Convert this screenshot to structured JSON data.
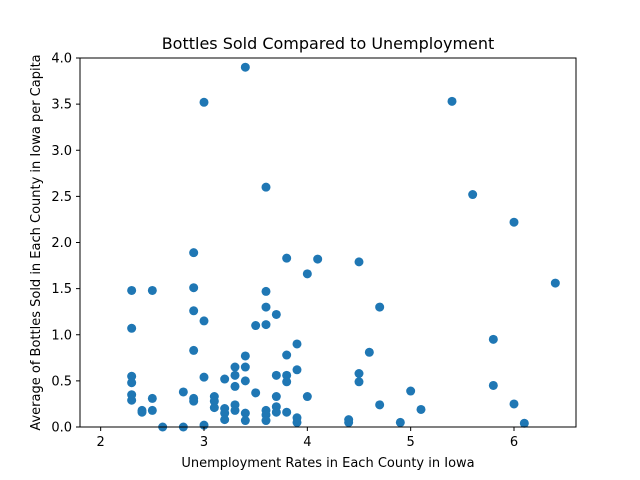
{
  "chart_data": {
    "type": "scatter",
    "title": "Bottles Sold Compared to Unemployment",
    "xlabel": "Unemployment Rates in Each County in Iowa",
    "ylabel": "Average of Bottles Sold in Each County in Iowa per Capita",
    "xlim": [
      1.8,
      6.6
    ],
    "ylim": [
      0.0,
      4.0
    ],
    "x_ticks": [
      2,
      3,
      4,
      5,
      6
    ],
    "x_tick_labels": [
      "2",
      "3",
      "4",
      "5",
      "6"
    ],
    "y_ticks": [
      0.0,
      0.5,
      1.0,
      1.5,
      2.0,
      2.5,
      3.0,
      3.5,
      4.0
    ],
    "y_tick_labels": [
      "0.0",
      "0.5",
      "1.0",
      "1.5",
      "2.0",
      "2.5",
      "3.0",
      "3.5",
      "4.0"
    ],
    "grid": false,
    "marker_color": "#1f77b4",
    "points": [
      [
        2.3,
        1.48
      ],
      [
        2.3,
        1.07
      ],
      [
        2.3,
        0.55
      ],
      [
        2.3,
        0.48
      ],
      [
        2.3,
        0.35
      ],
      [
        2.3,
        0.29
      ],
      [
        2.4,
        0.18
      ],
      [
        2.4,
        0.16
      ],
      [
        2.5,
        1.48
      ],
      [
        2.5,
        0.31
      ],
      [
        2.5,
        0.18
      ],
      [
        2.6,
        0.0
      ],
      [
        2.8,
        0.38
      ],
      [
        2.8,
        0.0
      ],
      [
        2.9,
        1.89
      ],
      [
        2.9,
        1.51
      ],
      [
        2.9,
        1.26
      ],
      [
        2.9,
        0.83
      ],
      [
        2.9,
        0.31
      ],
      [
        2.9,
        0.28
      ],
      [
        3.0,
        3.52
      ],
      [
        3.0,
        1.15
      ],
      [
        3.0,
        0.54
      ],
      [
        3.0,
        0.02
      ],
      [
        3.1,
        0.33
      ],
      [
        3.1,
        0.28
      ],
      [
        3.1,
        0.21
      ],
      [
        3.2,
        0.52
      ],
      [
        3.2,
        0.2
      ],
      [
        3.2,
        0.15
      ],
      [
        3.2,
        0.08
      ],
      [
        3.3,
        0.65
      ],
      [
        3.3,
        0.56
      ],
      [
        3.3,
        0.44
      ],
      [
        3.3,
        0.24
      ],
      [
        3.3,
        0.18
      ],
      [
        3.4,
        3.9
      ],
      [
        3.4,
        0.77
      ],
      [
        3.4,
        0.65
      ],
      [
        3.4,
        0.5
      ],
      [
        3.4,
        0.15
      ],
      [
        3.4,
        0.07
      ],
      [
        3.5,
        1.1
      ],
      [
        3.5,
        0.37
      ],
      [
        3.6,
        2.6
      ],
      [
        3.6,
        1.47
      ],
      [
        3.6,
        1.3
      ],
      [
        3.6,
        1.11
      ],
      [
        3.6,
        0.18
      ],
      [
        3.6,
        0.13
      ],
      [
        3.6,
        0.07
      ],
      [
        3.7,
        1.22
      ],
      [
        3.7,
        0.56
      ],
      [
        3.7,
        0.33
      ],
      [
        3.7,
        0.22
      ],
      [
        3.7,
        0.16
      ],
      [
        3.8,
        1.83
      ],
      [
        3.8,
        0.78
      ],
      [
        3.8,
        0.56
      ],
      [
        3.8,
        0.49
      ],
      [
        3.8,
        0.16
      ],
      [
        3.9,
        0.9
      ],
      [
        3.9,
        0.62
      ],
      [
        3.9,
        0.1
      ],
      [
        3.9,
        0.05
      ],
      [
        4.0,
        1.66
      ],
      [
        4.0,
        0.33
      ],
      [
        4.1,
        1.82
      ],
      [
        4.4,
        0.08
      ],
      [
        4.4,
        0.05
      ],
      [
        4.5,
        1.79
      ],
      [
        4.5,
        0.58
      ],
      [
        4.5,
        0.49
      ],
      [
        4.6,
        0.81
      ],
      [
        4.7,
        1.3
      ],
      [
        4.7,
        0.24
      ],
      [
        4.9,
        0.05
      ],
      [
        5.0,
        0.39
      ],
      [
        5.1,
        0.19
      ],
      [
        5.4,
        3.53
      ],
      [
        5.6,
        2.52
      ],
      [
        5.8,
        0.95
      ],
      [
        5.8,
        0.45
      ],
      [
        6.0,
        2.22
      ],
      [
        6.0,
        0.25
      ],
      [
        6.1,
        0.04
      ],
      [
        6.4,
        1.56
      ]
    ]
  }
}
